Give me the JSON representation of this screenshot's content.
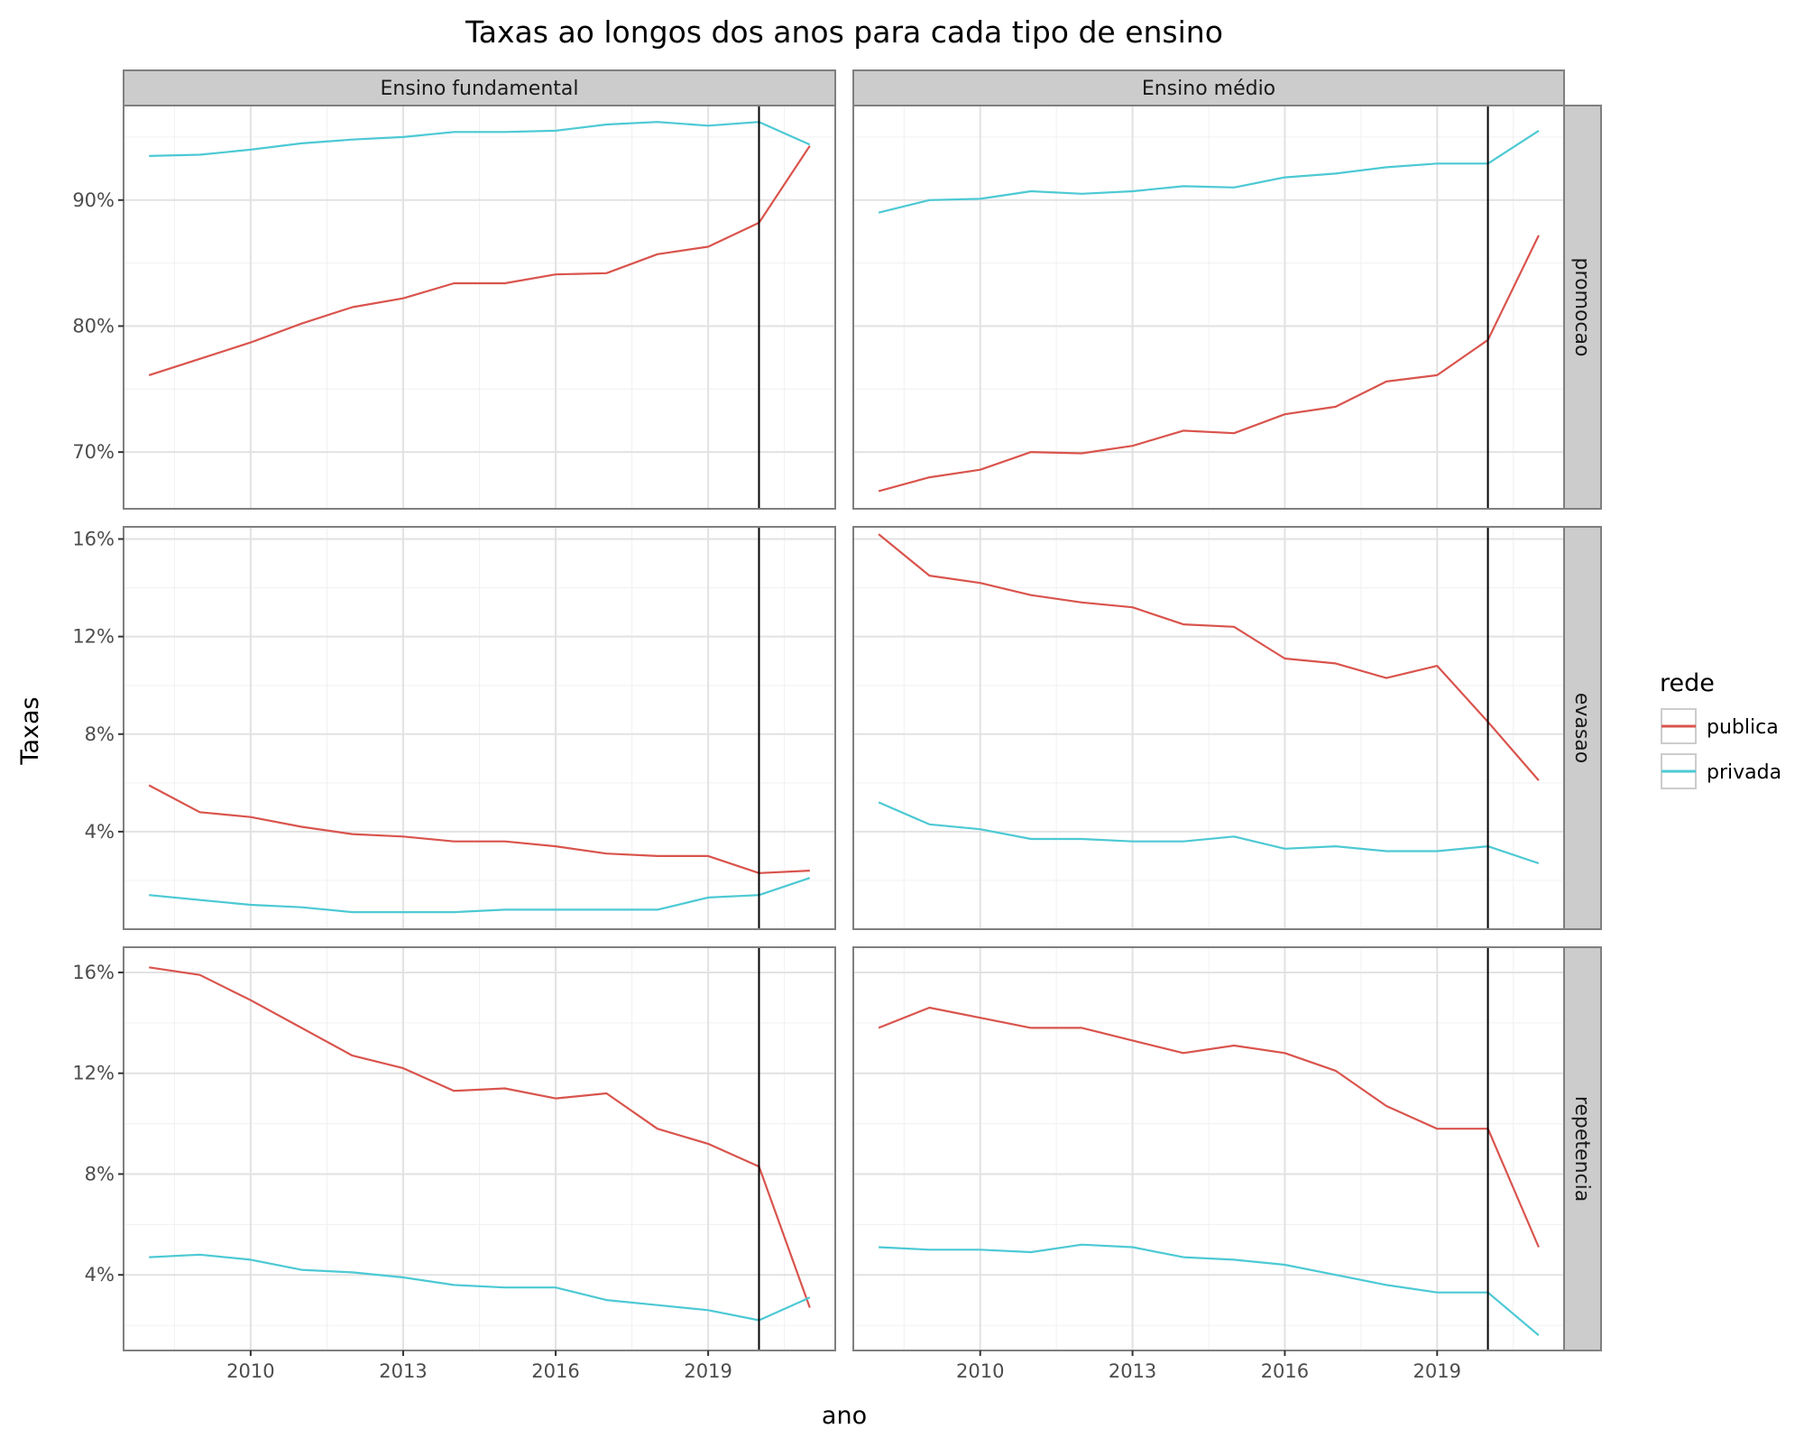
{
  "chart_data": {
    "type": "line",
    "title": "Taxas ao longos dos anos para cada tipo de ensino",
    "xlabel": "ano",
    "ylabel": "Taxas",
    "x": [
      2008,
      2009,
      2010,
      2011,
      2012,
      2013,
      2014,
      2015,
      2016,
      2017,
      2018,
      2019,
      2020,
      2021
    ],
    "xticks": [
      "2010",
      "2013",
      "2016",
      "2019"
    ],
    "xtick_values": [
      2010,
      2013,
      2016,
      2019
    ],
    "xlim": [
      2007.5,
      2021.5
    ],
    "vline_x": 2020,
    "grid": true,
    "columns": [
      "Ensino fundamental",
      "Ensino médio"
    ],
    "rows": [
      {
        "label": "promocao",
        "ylim": [
          65.5,
          97.5
        ],
        "yticks": [
          70,
          80,
          90
        ],
        "ytick_labels": [
          "70%",
          "80%",
          "90%"
        ]
      },
      {
        "label": "evasao",
        "ylim": [
          0.0,
          16.5
        ],
        "yticks": [
          4,
          8,
          12,
          16
        ],
        "ytick_labels": [
          "4%",
          "8%",
          "12%",
          "16%"
        ]
      },
      {
        "label": "repetencia",
        "ylim": [
          1.0,
          17.0
        ],
        "yticks": [
          4,
          8,
          12,
          16
        ],
        "ytick_labels": [
          "4%",
          "8%",
          "12%",
          "16%"
        ]
      }
    ],
    "legend": {
      "title": "rede",
      "position": "right",
      "entries": [
        {
          "name": "publica",
          "color": "#d9544d"
        },
        {
          "name": "privada",
          "color": "#4cc9d4"
        }
      ]
    },
    "panels": [
      {
        "row": "promocao",
        "col": "Ensino fundamental",
        "series": [
          {
            "name": "publica",
            "values": [
              76.1,
              77.4,
              78.7,
              80.2,
              81.5,
              82.2,
              83.4,
              83.4,
              84.1,
              84.2,
              85.7,
              86.3,
              88.2,
              94.3
            ]
          },
          {
            "name": "privada",
            "values": [
              93.5,
              93.6,
              94.0,
              94.5,
              94.8,
              95.0,
              95.4,
              95.4,
              95.5,
              96.0,
              96.2,
              95.9,
              96.2,
              94.4
            ]
          }
        ]
      },
      {
        "row": "promocao",
        "col": "Ensino médio",
        "series": [
          {
            "name": "publica",
            "values": [
              66.9,
              68.0,
              68.6,
              70.0,
              69.9,
              70.5,
              71.7,
              71.5,
              73.0,
              73.6,
              75.6,
              76.1,
              78.9,
              87.2
            ]
          },
          {
            "name": "privada",
            "values": [
              89.0,
              90.0,
              90.1,
              90.7,
              90.5,
              90.7,
              91.1,
              91.0,
              91.8,
              92.1,
              92.6,
              92.9,
              92.9,
              95.5
            ]
          }
        ]
      },
      {
        "row": "evasao",
        "col": "Ensino fundamental",
        "series": [
          {
            "name": "publica",
            "values": [
              5.9,
              4.8,
              4.6,
              4.2,
              3.9,
              3.8,
              3.6,
              3.6,
              3.4,
              3.1,
              3.0,
              3.0,
              2.3,
              2.4
            ]
          },
          {
            "name": "privada",
            "values": [
              1.4,
              1.2,
              1.0,
              0.9,
              0.7,
              0.7,
              0.7,
              0.8,
              0.8,
              0.8,
              0.8,
              1.3,
              1.4,
              2.1
            ]
          }
        ]
      },
      {
        "row": "evasao",
        "col": "Ensino médio",
        "series": [
          {
            "name": "publica",
            "values": [
              16.2,
              14.5,
              14.2,
              13.7,
              13.4,
              13.2,
              12.5,
              12.4,
              11.1,
              10.9,
              10.3,
              10.8,
              8.5,
              6.1
            ]
          },
          {
            "name": "privada",
            "values": [
              5.2,
              4.3,
              4.1,
              3.7,
              3.7,
              3.6,
              3.6,
              3.8,
              3.3,
              3.4,
              3.2,
              3.2,
              3.4,
              2.7
            ]
          }
        ]
      },
      {
        "row": "repetencia",
        "col": "Ensino fundamental",
        "series": [
          {
            "name": "publica",
            "values": [
              16.2,
              15.9,
              14.9,
              13.8,
              12.7,
              12.2,
              11.3,
              11.4,
              11.0,
              11.2,
              9.8,
              9.2,
              8.3,
              2.7
            ]
          },
          {
            "name": "privada",
            "values": [
              4.7,
              4.8,
              4.6,
              4.2,
              4.1,
              3.9,
              3.6,
              3.5,
              3.5,
              3.0,
              2.8,
              2.6,
              2.2,
              3.1
            ]
          }
        ]
      },
      {
        "row": "repetencia",
        "col": "Ensino médio",
        "series": [
          {
            "name": "publica",
            "values": [
              13.8,
              14.6,
              14.2,
              13.8,
              13.8,
              13.3,
              12.8,
              13.1,
              12.8,
              12.1,
              10.7,
              9.8,
              9.8,
              5.1
            ]
          },
          {
            "name": "privada",
            "values": [
              5.1,
              5.0,
              5.0,
              4.9,
              5.2,
              5.1,
              4.7,
              4.6,
              4.4,
              4.0,
              3.6,
              3.3,
              3.3,
              1.6
            ]
          }
        ]
      }
    ]
  }
}
